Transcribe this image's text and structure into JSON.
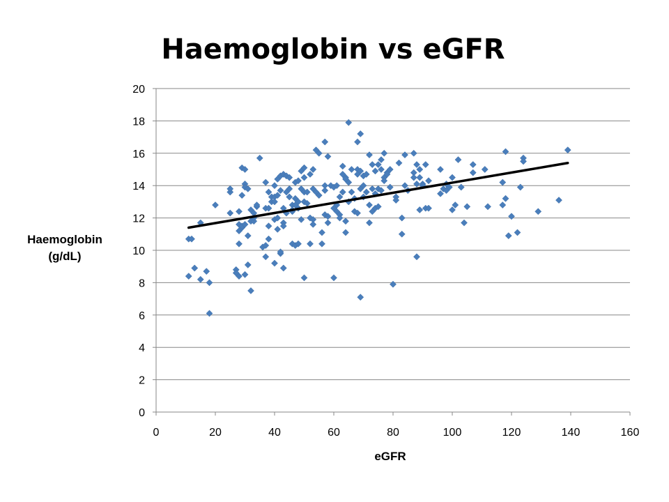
{
  "chart_data": {
    "type": "scatter",
    "title": "Haemoglobin vs eGFR",
    "xlabel": "eGFR",
    "ylabel_lines": [
      "Haemoglobin",
      "(g/dL)"
    ],
    "xlim": [
      0,
      160
    ],
    "ylim": [
      0,
      20
    ],
    "xticks": [
      0,
      20,
      40,
      60,
      80,
      100,
      120,
      140,
      160
    ],
    "yticks": [
      0,
      2,
      4,
      6,
      8,
      10,
      12,
      14,
      16,
      18,
      20
    ],
    "grid": "horizontal",
    "legend": "none",
    "marker_color": "#4a7ebb",
    "trendline": {
      "x": [
        11,
        139
      ],
      "y": [
        11.4,
        15.4
      ],
      "color": "#000000"
    },
    "points": [
      [
        11,
        10.7
      ],
      [
        12,
        10.7
      ],
      [
        11,
        8.4
      ],
      [
        13,
        8.9
      ],
      [
        15,
        8.2
      ],
      [
        15,
        11.7
      ],
      [
        17,
        8.7
      ],
      [
        18,
        8.0
      ],
      [
        18,
        6.1
      ],
      [
        20,
        12.8
      ],
      [
        25,
        13.6
      ],
      [
        25,
        13.8
      ],
      [
        25,
        12.3
      ],
      [
        27,
        8.8
      ],
      [
        27,
        8.6
      ],
      [
        28,
        8.4
      ],
      [
        28,
        11.2
      ],
      [
        28,
        12.4
      ],
      [
        28,
        10.4
      ],
      [
        28,
        11.6
      ],
      [
        29,
        11.4
      ],
      [
        29,
        11.5
      ],
      [
        29,
        13.4
      ],
      [
        29,
        15.1
      ],
      [
        30,
        15.0
      ],
      [
        30,
        14.1
      ],
      [
        30,
        13.9
      ],
      [
        30,
        8.5
      ],
      [
        30,
        11.6
      ],
      [
        31,
        10.9
      ],
      [
        31,
        9.1
      ],
      [
        31,
        13.8
      ],
      [
        32,
        11.8
      ],
      [
        32,
        7.5
      ],
      [
        32,
        12.5
      ],
      [
        33,
        11.8
      ],
      [
        33,
        12.0
      ],
      [
        33,
        12.3
      ],
      [
        34,
        12.7
      ],
      [
        34,
        12.8
      ],
      [
        35,
        15.7
      ],
      [
        36,
        10.2
      ],
      [
        37,
        10.3
      ],
      [
        37,
        9.6
      ],
      [
        37,
        12.6
      ],
      [
        37,
        14.2
      ],
      [
        38,
        11.5
      ],
      [
        38,
        13.6
      ],
      [
        38,
        12.6
      ],
      [
        38,
        10.7
      ],
      [
        39,
        13.3
      ],
      [
        39,
        13.0
      ],
      [
        40,
        14.0
      ],
      [
        40,
        13.3
      ],
      [
        40,
        13.0
      ],
      [
        40,
        11.9
      ],
      [
        40,
        9.2
      ],
      [
        41,
        13.4
      ],
      [
        41,
        14.4
      ],
      [
        41,
        12.0
      ],
      [
        41,
        11.3
      ],
      [
        42,
        14.6
      ],
      [
        42,
        13.7
      ],
      [
        42,
        9.8
      ],
      [
        42,
        9.9
      ],
      [
        43,
        14.7
      ],
      [
        43,
        11.7
      ],
      [
        43,
        11.5
      ],
      [
        43,
        8.9
      ],
      [
        43,
        12.6
      ],
      [
        44,
        14.6
      ],
      [
        44,
        13.6
      ],
      [
        44,
        12.3
      ],
      [
        45,
        14.5
      ],
      [
        45,
        13.3
      ],
      [
        45,
        13.8
      ],
      [
        46,
        12.8
      ],
      [
        46,
        10.4
      ],
      [
        46,
        12.5
      ],
      [
        46,
        12.4
      ],
      [
        47,
        14.2
      ],
      [
        47,
        13.2
      ],
      [
        47,
        12.8
      ],
      [
        47,
        10.3
      ],
      [
        48,
        14.3
      ],
      [
        48,
        13.0
      ],
      [
        48,
        12.6
      ],
      [
        48,
        10.4
      ],
      [
        49,
        13.8
      ],
      [
        49,
        14.9
      ],
      [
        49,
        11.9
      ],
      [
        50,
        15.1
      ],
      [
        50,
        14.5
      ],
      [
        50,
        13.6
      ],
      [
        50,
        13.0
      ],
      [
        50,
        8.3
      ],
      [
        51,
        12.9
      ],
      [
        51,
        13.6
      ],
      [
        52,
        14.7
      ],
      [
        52,
        12.0
      ],
      [
        52,
        10.4
      ],
      [
        53,
        15.0
      ],
      [
        53,
        13.8
      ],
      [
        53,
        11.9
      ],
      [
        53,
        11.6
      ],
      [
        54,
        16.2
      ],
      [
        54,
        13.6
      ],
      [
        55,
        16.0
      ],
      [
        55,
        13.4
      ],
      [
        56,
        10.4
      ],
      [
        56,
        11.1
      ],
      [
        57,
        16.7
      ],
      [
        57,
        14.0
      ],
      [
        57,
        13.7
      ],
      [
        57,
        12.2
      ],
      [
        58,
        15.8
      ],
      [
        58,
        12.1
      ],
      [
        58,
        11.7
      ],
      [
        59,
        14.0
      ],
      [
        60,
        13.9
      ],
      [
        60,
        12.6
      ],
      [
        60,
        8.3
      ],
      [
        61,
        14.0
      ],
      [
        61,
        12.4
      ],
      [
        61,
        12.8
      ],
      [
        62,
        13.3
      ],
      [
        62,
        12.2
      ],
      [
        62,
        12.0
      ],
      [
        63,
        15.2
      ],
      [
        63,
        13.6
      ],
      [
        63,
        14.7
      ],
      [
        64,
        14.5
      ],
      [
        64,
        14.4
      ],
      [
        64,
        11.8
      ],
      [
        64,
        11.1
      ],
      [
        65,
        17.9
      ],
      [
        65,
        14.2
      ],
      [
        65,
        13.0
      ],
      [
        66,
        15.0
      ],
      [
        66,
        13.6
      ],
      [
        67,
        13.2
      ],
      [
        67,
        12.4
      ],
      [
        68,
        16.7
      ],
      [
        68,
        15.0
      ],
      [
        68,
        14.7
      ],
      [
        68,
        12.3
      ],
      [
        69,
        17.2
      ],
      [
        69,
        14.9
      ],
      [
        69,
        13.8
      ],
      [
        69,
        7.1
      ],
      [
        70,
        14.6
      ],
      [
        70,
        14.0
      ],
      [
        70,
        13.3
      ],
      [
        71,
        14.7
      ],
      [
        71,
        13.6
      ],
      [
        72,
        15.9
      ],
      [
        72,
        12.8
      ],
      [
        72,
        11.7
      ],
      [
        73,
        15.3
      ],
      [
        73,
        13.8
      ],
      [
        73,
        12.4
      ],
      [
        74,
        14.9
      ],
      [
        74,
        13.5
      ],
      [
        74,
        12.6
      ],
      [
        75,
        15.3
      ],
      [
        75,
        12.7
      ],
      [
        75,
        13.8
      ],
      [
        76,
        15.6
      ],
      [
        76,
        15.0
      ],
      [
        76,
        13.7
      ],
      [
        77,
        16.0
      ],
      [
        77,
        14.5
      ],
      [
        77,
        14.3
      ],
      [
        78,
        14.8
      ],
      [
        78,
        14.7
      ],
      [
        79,
        15.0
      ],
      [
        79,
        13.9
      ],
      [
        80,
        7.9
      ],
      [
        81,
        13.3
      ],
      [
        81,
        13.1
      ],
      [
        82,
        15.4
      ],
      [
        83,
        12.0
      ],
      [
        83,
        11.0
      ],
      [
        84,
        15.9
      ],
      [
        84,
        14.0
      ],
      [
        85,
        13.7
      ],
      [
        87,
        16.0
      ],
      [
        87,
        14.8
      ],
      [
        87,
        14.5
      ],
      [
        88,
        15.3
      ],
      [
        88,
        14.1
      ],
      [
        88,
        9.6
      ],
      [
        89,
        15.0
      ],
      [
        89,
        14.5
      ],
      [
        89,
        12.5
      ],
      [
        90,
        14.1
      ],
      [
        90,
        14.0
      ],
      [
        91,
        15.3
      ],
      [
        91,
        12.6
      ],
      [
        92,
        14.3
      ],
      [
        92,
        12.6
      ],
      [
        96,
        15.0
      ],
      [
        96,
        13.5
      ],
      [
        97,
        13.8
      ],
      [
        98,
        13.7
      ],
      [
        98,
        14.1
      ],
      [
        99,
        13.9
      ],
      [
        100,
        14.5
      ],
      [
        100,
        12.5
      ],
      [
        101,
        12.8
      ],
      [
        102,
        15.6
      ],
      [
        103,
        13.9
      ],
      [
        104,
        11.7
      ],
      [
        105,
        12.7
      ],
      [
        107,
        15.3
      ],
      [
        107,
        14.8
      ],
      [
        111,
        15.0
      ],
      [
        112,
        12.7
      ],
      [
        117,
        14.2
      ],
      [
        117,
        12.8
      ],
      [
        118,
        16.1
      ],
      [
        118,
        13.2
      ],
      [
        119,
        10.9
      ],
      [
        120,
        12.1
      ],
      [
        122,
        11.1
      ],
      [
        123,
        13.9
      ],
      [
        124,
        15.7
      ],
      [
        124,
        15.5
      ],
      [
        129,
        12.4
      ],
      [
        136,
        13.1
      ],
      [
        139,
        16.2
      ]
    ]
  }
}
